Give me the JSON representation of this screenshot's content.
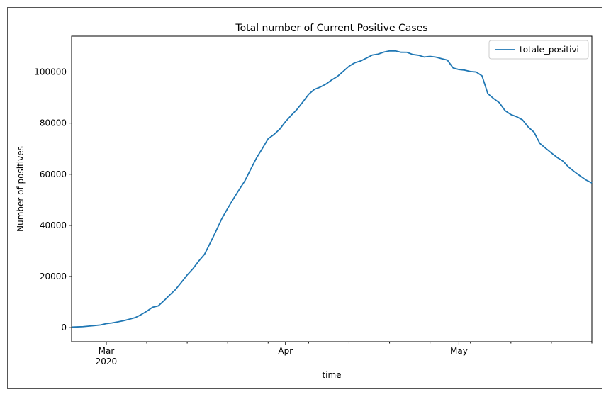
{
  "chart_data": {
    "type": "line",
    "title": "Total number of Current Positive Cases",
    "xlabel": "time",
    "ylabel": "Number of positives",
    "xlim": [
      "2020-02-24",
      "2020-05-24"
    ],
    "ylim": [
      -5500,
      114000
    ],
    "y_ticks": [
      0,
      20000,
      40000,
      60000,
      80000,
      100000
    ],
    "x_ticks": [
      {
        "date": "2020-03-01",
        "label": "Mar",
        "sublabel": "2020"
      },
      {
        "date": "2020-04-01",
        "label": "Apr",
        "sublabel": ""
      },
      {
        "date": "2020-05-01",
        "label": "May",
        "sublabel": ""
      }
    ],
    "grid": false,
    "legend_position": "top-right",
    "series": [
      {
        "name": "totale_positivi",
        "color": "#1f77b4",
        "x": [
          "2020-02-24",
          "2020-02-25",
          "2020-02-26",
          "2020-02-27",
          "2020-02-28",
          "2020-02-29",
          "2020-03-01",
          "2020-03-02",
          "2020-03-03",
          "2020-03-04",
          "2020-03-05",
          "2020-03-06",
          "2020-03-07",
          "2020-03-08",
          "2020-03-09",
          "2020-03-10",
          "2020-03-11",
          "2020-03-12",
          "2020-03-13",
          "2020-03-14",
          "2020-03-15",
          "2020-03-16",
          "2020-03-17",
          "2020-03-18",
          "2020-03-19",
          "2020-03-20",
          "2020-03-21",
          "2020-03-22",
          "2020-03-23",
          "2020-03-24",
          "2020-03-25",
          "2020-03-26",
          "2020-03-27",
          "2020-03-28",
          "2020-03-29",
          "2020-03-30",
          "2020-03-31",
          "2020-04-01",
          "2020-04-02",
          "2020-04-03",
          "2020-04-04",
          "2020-04-05",
          "2020-04-06",
          "2020-04-07",
          "2020-04-08",
          "2020-04-09",
          "2020-04-10",
          "2020-04-11",
          "2020-04-12",
          "2020-04-13",
          "2020-04-14",
          "2020-04-15",
          "2020-04-16",
          "2020-04-17",
          "2020-04-18",
          "2020-04-19",
          "2020-04-20",
          "2020-04-21",
          "2020-04-22",
          "2020-04-23",
          "2020-04-24",
          "2020-04-25",
          "2020-04-26",
          "2020-04-27",
          "2020-04-28",
          "2020-04-29",
          "2020-04-30",
          "2020-05-01",
          "2020-05-02",
          "2020-05-03",
          "2020-05-04",
          "2020-05-05",
          "2020-05-06",
          "2020-05-07",
          "2020-05-08",
          "2020-05-09",
          "2020-05-10",
          "2020-05-11",
          "2020-05-12",
          "2020-05-13",
          "2020-05-14",
          "2020-05-15",
          "2020-05-16",
          "2020-05-17",
          "2020-05-18",
          "2020-05-19",
          "2020-05-20",
          "2020-05-21",
          "2020-05-22",
          "2020-05-23",
          "2020-05-24"
        ],
        "y": [
          221,
          311,
          385,
          588,
          821,
          1049,
          1577,
          1835,
          2263,
          2706,
          3296,
          3916,
          5061,
          6387,
          7985,
          8514,
          10590,
          12839,
          14955,
          17750,
          20603,
          23073,
          26062,
          28710,
          33190,
          37860,
          42681,
          46638,
          50418,
          54030,
          57521,
          62013,
          66414,
          70065,
          73880,
          75528,
          77635,
          80572,
          83049,
          85388,
          88274,
          91246,
          93187,
          94067,
          95262,
          96877,
          98273,
          100269,
          102253,
          103616,
          104291,
          105418,
          106607,
          106962,
          107771,
          108257,
          108237,
          107709,
          107699,
          106848,
          106527,
          105847,
          106103,
          105813,
          105205,
          104657,
          101551,
          100943,
          100704,
          100179,
          99980,
          98467,
          91528,
          89624,
          87961,
          84842,
          83324,
          82488,
          81266,
          78457,
          76440,
          72070,
          70187,
          68351,
          66553,
          65129,
          62752,
          60960,
          59322,
          57752,
          56594
        ]
      }
    ]
  }
}
